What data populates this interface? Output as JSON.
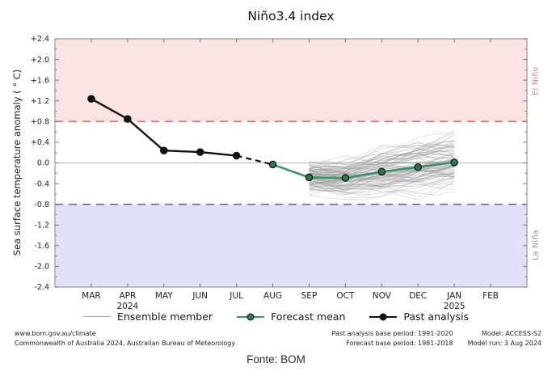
{
  "chart_data": {
    "type": "line",
    "title": "Niño3.4 index",
    "ylabel": "Sea surface temperature anomaly ( ° C)",
    "xlabel": "",
    "ylim": [
      -2.4,
      2.4
    ],
    "grid": "zero-line-only",
    "legend_position": "bottom",
    "x_categories": [
      "MAR",
      "APR",
      "MAY",
      "JUN",
      "JUL",
      "AUG",
      "SEP",
      "OCT",
      "NOV",
      "DEC",
      "JAN",
      "FEB"
    ],
    "x_year_labels": [
      {
        "month_index": 1,
        "year": "2024"
      },
      {
        "month_index": 10,
        "year": "2025"
      }
    ],
    "y_ticks": {
      "values": [
        2.4,
        2.0,
        1.6,
        1.2,
        0.8,
        0.4,
        0.0,
        -0.4,
        -0.8,
        -1.2,
        -1.6,
        -2.0,
        -2.4
      ],
      "labels": [
        "+2.4",
        "+2.0",
        "+1.6",
        "+1.2",
        "+0.8",
        "+0.4",
        "0.0",
        "-0.4",
        "-0.8",
        "-1.2",
        "-1.6",
        "-2.0",
        "-2.4"
      ],
      "minor_step": 0.2
    },
    "zero_line": {
      "value": 0.0,
      "color": "#b3b3b3"
    },
    "thresholds": [
      {
        "name": "el-nino-threshold",
        "value": 0.8,
        "label": "El Niño",
        "line_color": "#dd6a6a",
        "band_color": "#fae3e3",
        "band": "above",
        "label_color": "#d98a8a"
      },
      {
        "name": "la-nina-threshold",
        "value": -0.8,
        "label": "La Niña",
        "line_color": "#6a6aa0",
        "band_color": "#e2e1f7",
        "band": "below",
        "label_color": "#9094ae"
      }
    ],
    "series": [
      {
        "name": "Past analysis",
        "color": "#111111",
        "marker_fill": "#111111",
        "x": [
          "MAR",
          "APR",
          "MAY",
          "JUN",
          "JUL",
          "AUG"
        ],
        "values": [
          1.24,
          0.85,
          0.24,
          0.21,
          0.14,
          -0.03
        ],
        "dashed_segment_from_index": 4,
        "marker_indices": [
          0,
          1,
          2,
          3,
          4
        ]
      },
      {
        "name": "Forecast mean",
        "color": "#3b9268",
        "marker_fill": "#2c7a50",
        "x": [
          "AUG",
          "SEP",
          "OCT",
          "NOV",
          "DEC",
          "JAN"
        ],
        "values": [
          -0.03,
          -0.28,
          -0.29,
          -0.17,
          -0.08,
          0.01
        ],
        "marker_indices": [
          0,
          1,
          2,
          3,
          4,
          5
        ]
      }
    ],
    "ensemble": {
      "name": "Ensemble member",
      "color": "rgba(145,145,145,0.32)",
      "count": 96,
      "x": [
        "SEP",
        "OCT",
        "NOV",
        "DEC",
        "JAN"
      ],
      "mean": [
        -0.28,
        -0.29,
        -0.17,
        -0.08,
        0.01
      ],
      "min": [
        -0.62,
        -1.13,
        -1.05,
        -0.98,
        -0.95
      ],
      "max": [
        0.32,
        0.72,
        0.92,
        0.86,
        0.9
      ]
    }
  },
  "legend": {
    "items": [
      {
        "label": "Ensemble member"
      },
      {
        "label": "Forecast mean"
      },
      {
        "label": "Past analysis"
      }
    ]
  },
  "footer": {
    "source_url": "www.bom.gov.au/climate",
    "copyright": "Commonwealth of Australia 2024, Australian Bureau of Meteorology",
    "past_base_period": "Past analysis base period: 1991-2020",
    "forecast_base_period": "Forecast base period: 1981-2018",
    "model": "Model: ACCESS-S2",
    "model_run": "Model run: 3 Aug 2024",
    "caption": "Fonte: BOM"
  }
}
